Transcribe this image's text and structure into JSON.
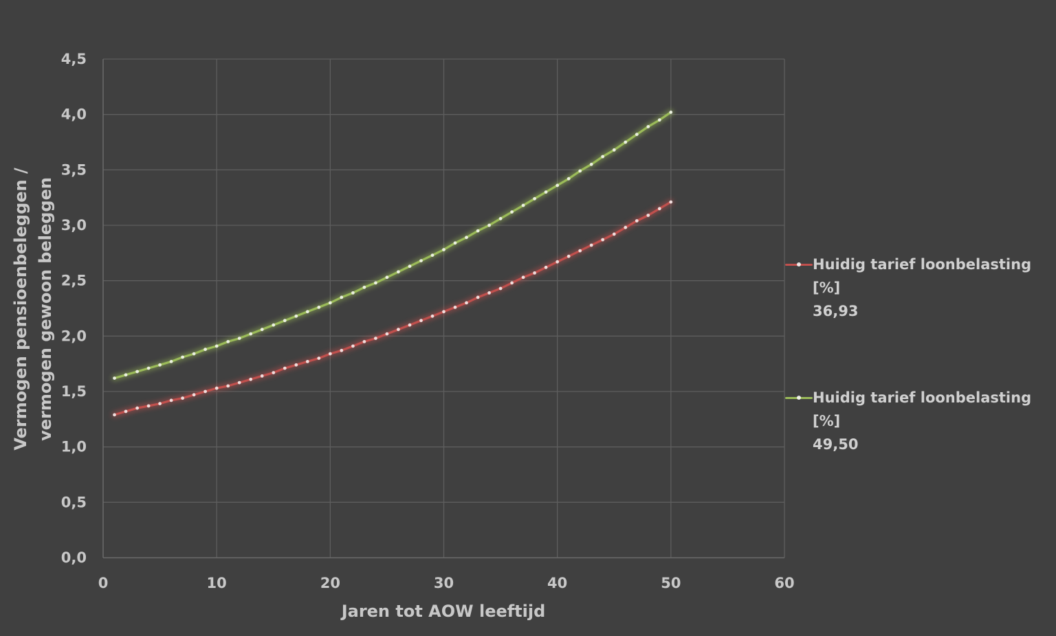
{
  "chart_data": {
    "type": "line",
    "title": "",
    "xlabel": "Jaren tot AOW leeftijd",
    "ylabel": [
      "Vermogen pensioenbeleggen /",
      "vermogen gewoon beleggen"
    ],
    "xlim": [
      0,
      60
    ],
    "ylim": [
      0,
      4.5
    ],
    "xticks": [
      0,
      10,
      20,
      30,
      40,
      50,
      60
    ],
    "yticks": [
      "0,0",
      "0,5",
      "1,0",
      "1,5",
      "2,0",
      "2,5",
      "3,0",
      "3,5",
      "4,0",
      "4,5"
    ],
    "grid": true,
    "legend_position": "right",
    "series": [
      {
        "name": "Huidig tarief loonbelasting [%]\n36,93",
        "color": "#c0504d",
        "x_start": 1,
        "x_step": 1,
        "values": [
          1.29,
          1.32,
          1.35,
          1.37,
          1.39,
          1.42,
          1.44,
          1.47,
          1.5,
          1.53,
          1.55,
          1.58,
          1.61,
          1.64,
          1.67,
          1.71,
          1.74,
          1.77,
          1.8,
          1.84,
          1.87,
          1.91,
          1.95,
          1.98,
          2.02,
          2.06,
          2.1,
          2.14,
          2.18,
          2.22,
          2.26,
          2.3,
          2.35,
          2.39,
          2.43,
          2.48,
          2.53,
          2.57,
          2.62,
          2.67,
          2.72,
          2.77,
          2.82,
          2.87,
          2.92,
          2.98,
          3.04,
          3.09,
          3.15,
          3.21
        ]
      },
      {
        "name": "Huidig tarief loonbelasting [%]\n49,50",
        "color": "#9bbb59",
        "x_start": 1,
        "x_step": 1,
        "values": [
          1.62,
          1.65,
          1.68,
          1.71,
          1.74,
          1.77,
          1.81,
          1.84,
          1.88,
          1.91,
          1.95,
          1.98,
          2.02,
          2.06,
          2.1,
          2.14,
          2.18,
          2.22,
          2.26,
          2.3,
          2.35,
          2.39,
          2.44,
          2.48,
          2.53,
          2.58,
          2.63,
          2.68,
          2.73,
          2.78,
          2.84,
          2.89,
          2.95,
          3.0,
          3.06,
          3.12,
          3.18,
          3.24,
          3.3,
          3.36,
          3.42,
          3.49,
          3.55,
          3.62,
          3.68,
          3.75,
          3.82,
          3.89,
          3.95,
          4.02
        ]
      }
    ]
  }
}
